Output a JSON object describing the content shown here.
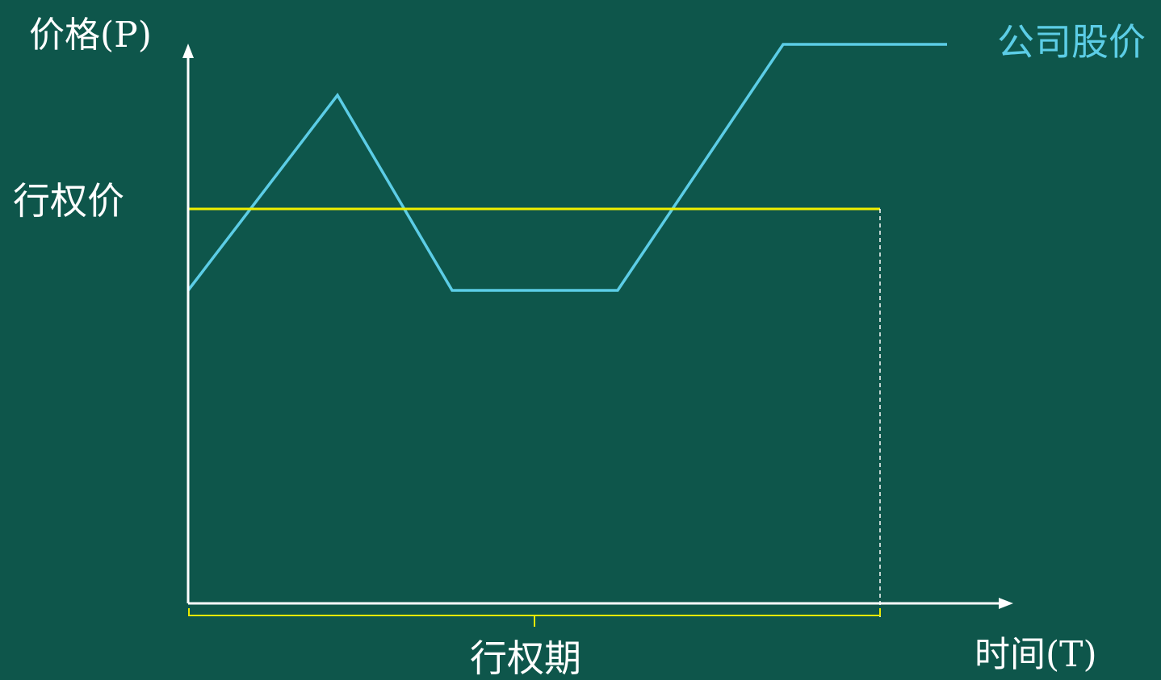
{
  "axes": {
    "y_label": "价格(P)",
    "x_label": "时间(T)"
  },
  "strike": {
    "label": "行权价",
    "color": "#f0f000"
  },
  "exercise_period": {
    "label": "行权期",
    "color": "#e8e800"
  },
  "stock_price": {
    "label": "公司股价",
    "color": "#5ccde6"
  },
  "colors": {
    "background": "#0e564b",
    "axis": "#ffffff",
    "text": "#ffffff"
  }
}
